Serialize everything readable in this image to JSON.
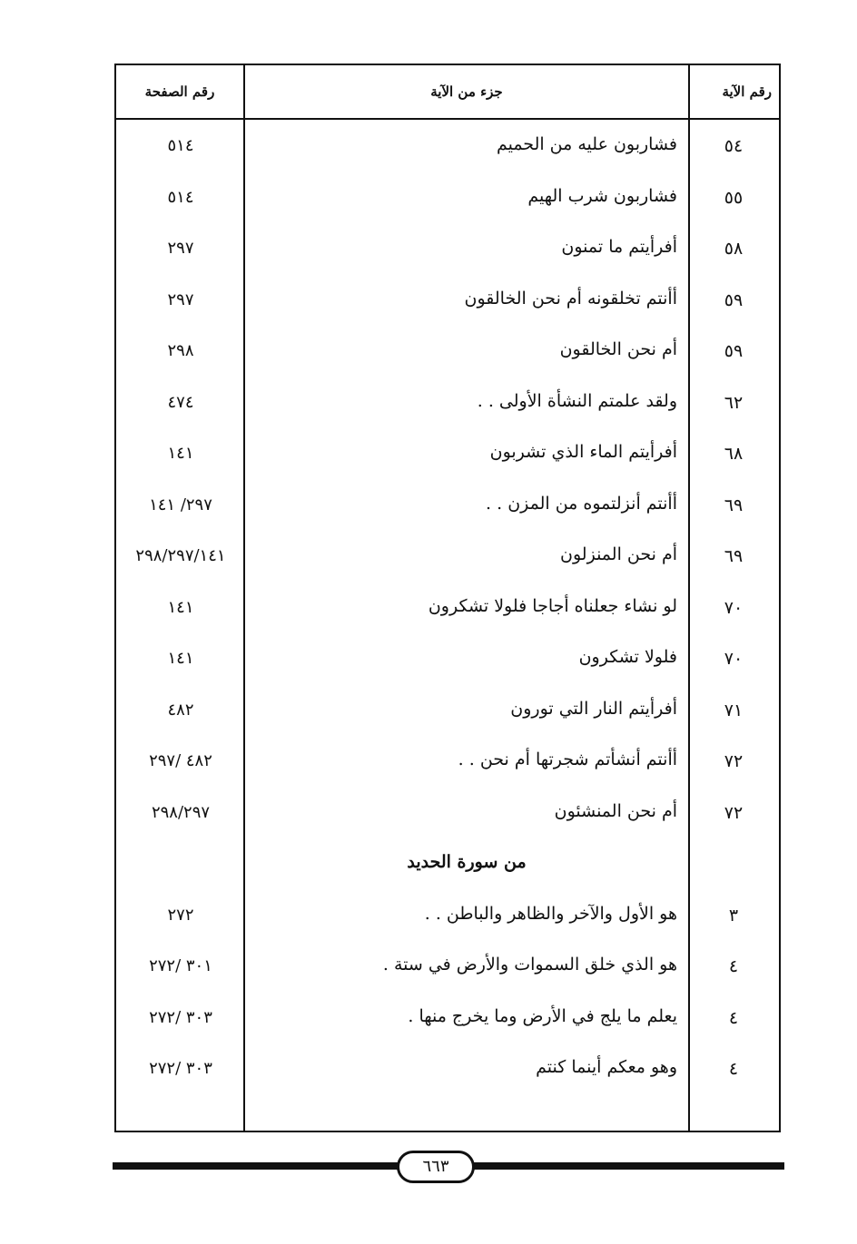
{
  "header": {
    "verse_no": "رقم الآية",
    "verse_part": "جزء من الآية",
    "page_no": "رقم الصفحة"
  },
  "rows": [
    {
      "n": "٥٤",
      "t": "فشاربون عليه من الحميم",
      "p": "٥١٤"
    },
    {
      "n": "٥٥",
      "t": "فشاربون شرب الهيم",
      "p": "٥١٤"
    },
    {
      "n": "٥٨",
      "t": "أفرأيتم ما تمنون",
      "p": "٢٩٧"
    },
    {
      "n": "٥٩",
      "t": "أأنتم تخلقونه أم نحن الخالقون",
      "p": "٢٩٧"
    },
    {
      "n": "٥٩",
      "t": "أم نحن الخالقون",
      "p": "٢٩٨"
    },
    {
      "n": "٦٢",
      "t": "ولقد علمتم النشأة الأولى . .",
      "p": "٤٧٤"
    },
    {
      "n": "٦٨",
      "t": "أفرأيتم الماء الذي تشربون",
      "p": "١٤١"
    },
    {
      "n": "٦٩",
      "t": "أأنتم أنزلتموه من المزن . .",
      "p": "٢٩٧/ ١٤١"
    },
    {
      "n": "٦٩",
      "t": "أم نحن المنزلون",
      "p": "٢٩٨/٢٩٧/١٤١"
    },
    {
      "n": "٧٠",
      "t": "لو نشاء جعلناه أجاجا فلولا تشكرون",
      "p": "١٤١"
    },
    {
      "n": "٧٠",
      "t": "فلولا تشكرون",
      "p": "١٤١"
    },
    {
      "n": "٧١",
      "t": "أفرأيتم النار التي تورون",
      "p": "٤٨٢"
    },
    {
      "n": "٧٢",
      "t": "أأنتم أنشأتم شجرتها أم نحن . .",
      "p": "٤٨٢ /٢٩٧"
    },
    {
      "n": "٧٢",
      "t": "أم نحن المنشئون",
      "p": "٢٩٨/٢٩٧"
    }
  ],
  "section_title": "من سورة الحديد",
  "rows2": [
    {
      "n": "٣",
      "t": "هو الأول والآخر والظاهر والباطن . .",
      "p": "٢٧٢"
    },
    {
      "n": "٤",
      "t": "هو الذي خلق السموات والأرض في ستة .",
      "p": "٣٠١ /٢٧٢"
    },
    {
      "n": "٤",
      "t": "يعلم ما يلج في الأرض وما يخرج منها .",
      "p": "٣٠٣ /٢٧٢"
    },
    {
      "n": "٤",
      "t": "وهو معكم أينما كنتم",
      "p": "٣٠٣ /٢٧٢"
    }
  ],
  "page_number": "٦٦٣"
}
